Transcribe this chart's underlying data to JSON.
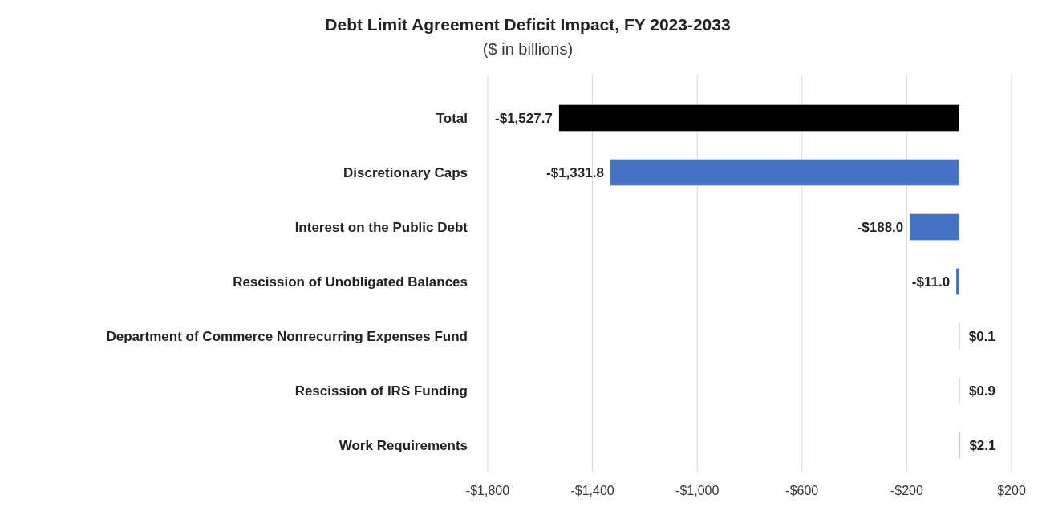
{
  "chart_data": {
    "type": "bar",
    "orientation": "horizontal",
    "title": "Debt Limit Agreement Deficit Impact, FY 2023-2033",
    "subtitle": "($ in billions)",
    "categories": [
      "Total",
      "Discretionary Caps",
      "Interest on the Public Debt",
      "Rescission of Unobligated Balances",
      "Department of Commerce Nonrecurring Expenses Fund",
      "Rescission of IRS Funding",
      "Work Requirements"
    ],
    "values": [
      -1527.7,
      -1331.8,
      -188.0,
      -11.0,
      0.1,
      0.9,
      2.1
    ],
    "colors": [
      "#000000",
      "#4472c4",
      "#4472c4",
      "#4472c4",
      "#4472c4",
      "#4472c4",
      "#4472c4"
    ],
    "value_labels": [
      "-$1,527.7",
      "-$1,331.8",
      "-$188.0",
      "-$11.0",
      "$0.1",
      "$0.9",
      "$2.1"
    ],
    "xlim": [
      -1800,
      200
    ],
    "xticks": [
      {
        "value": -1800,
        "label": "-$1,800"
      },
      {
        "value": -1400,
        "label": "-$1,400"
      },
      {
        "value": -1000,
        "label": "-$1,000"
      },
      {
        "value": -600,
        "label": "-$600"
      },
      {
        "value": -200,
        "label": "-$200"
      },
      {
        "value": 200,
        "label": "$200"
      }
    ],
    "grid": "x"
  }
}
